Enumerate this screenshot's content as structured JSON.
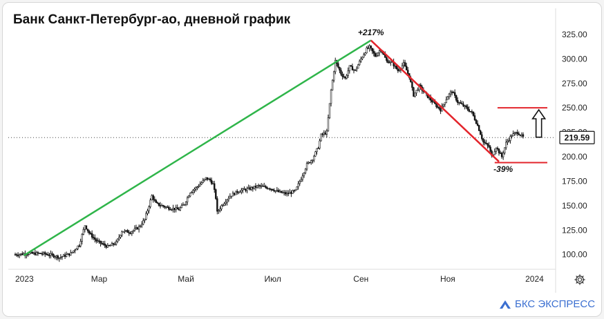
{
  "title": "Банк Санкт-Петербург-ао, дневной график",
  "brand": {
    "name": "БКС ЭКСПРЕСС",
    "color": "#3b6fd1"
  },
  "icons": {
    "settings": "gear-icon",
    "logo": "bks-logo-icon",
    "arrow": "up-arrow-icon"
  },
  "colors": {
    "candles": "#111111",
    "uptrend": "#2fb54a",
    "downtrend": "#e3242b",
    "levels": "#e3242b",
    "axis_text": "#222222"
  },
  "chart_data": {
    "type": "candlestick",
    "title": "Банк Санкт-Петербург-ао, дневной график",
    "y_ticks": [
      "100.00",
      "125.00",
      "150.00",
      "175.00",
      "200.00",
      "225.00",
      "250.00",
      "275.00",
      "300.00",
      "325.00"
    ],
    "ylim": [
      92,
      332
    ],
    "x_ticks": [
      "2023",
      "Мар",
      "Май",
      "Июл",
      "Сен",
      "Ноя",
      "2024"
    ],
    "x_tick_days": [
      1,
      60,
      121,
      182,
      244,
      305,
      366
    ],
    "xlim": [
      1,
      375
    ],
    "last_price": {
      "value": 219.59,
      "label": "219.59"
    },
    "close_series": [
      [
        1,
        100
      ],
      [
        10,
        101
      ],
      [
        20,
        101
      ],
      [
        28,
        99
      ],
      [
        32,
        97
      ],
      [
        40,
        101
      ],
      [
        46,
        110
      ],
      [
        50,
        130
      ],
      [
        53,
        122
      ],
      [
        58,
        114
      ],
      [
        66,
        108
      ],
      [
        72,
        112
      ],
      [
        76,
        124
      ],
      [
        82,
        123
      ],
      [
        88,
        128
      ],
      [
        92,
        136
      ],
      [
        95,
        150
      ],
      [
        97,
        160
      ],
      [
        100,
        152
      ],
      [
        108,
        148
      ],
      [
        116,
        146
      ],
      [
        120,
        152
      ],
      [
        124,
        164
      ],
      [
        128,
        168
      ],
      [
        131,
        172
      ],
      [
        135,
        178
      ],
      [
        138,
        176
      ],
      [
        140,
        172
      ],
      [
        142,
        158
      ],
      [
        138,
        150
      ],
      [
        143,
        143
      ],
      [
        146,
        150
      ],
      [
        152,
        160
      ],
      [
        158,
        165
      ],
      [
        165,
        167
      ],
      [
        172,
        170
      ],
      [
        180,
        168
      ],
      [
        186,
        164
      ],
      [
        192,
        162
      ],
      [
        198,
        165
      ],
      [
        202,
        178
      ],
      [
        206,
        192
      ],
      [
        210,
        198
      ],
      [
        214,
        210
      ],
      [
        216,
        222
      ],
      [
        220,
        225
      ],
      [
        223,
        268
      ],
      [
        226,
        298
      ],
      [
        230,
        285
      ],
      [
        233,
        280
      ],
      [
        236,
        292
      ],
      [
        240,
        288
      ],
      [
        244,
        300
      ],
      [
        248,
        310
      ],
      [
        250,
        312
      ],
      [
        254,
        303
      ],
      [
        258,
        310
      ],
      [
        262,
        298
      ],
      [
        266,
        296
      ],
      [
        270,
        288
      ],
      [
        274,
        295
      ],
      [
        278,
        282
      ],
      [
        281,
        263
      ],
      [
        285,
        272
      ],
      [
        290,
        263
      ],
      [
        295,
        255
      ],
      [
        300,
        248
      ],
      [
        305,
        262
      ],
      [
        308,
        267
      ],
      [
        312,
        256
      ],
      [
        318,
        250
      ],
      [
        322,
        245
      ],
      [
        326,
        232
      ],
      [
        330,
        215
      ],
      [
        334,
        210
      ],
      [
        336,
        200
      ],
      [
        339,
        210
      ],
      [
        343,
        200
      ],
      [
        346,
        214
      ],
      [
        350,
        222
      ],
      [
        354,
        225
      ],
      [
        358,
        220
      ]
    ],
    "annotations": [
      {
        "label": "+217%",
        "x": 251,
        "y": 320
      },
      {
        "label": "-39%",
        "x": 344,
        "y": 193
      }
    ],
    "trend_lines": [
      {
        "kind": "up",
        "from": [
          7,
          99
        ],
        "to": [
          251,
          319
        ]
      },
      {
        "kind": "down",
        "from": [
          251,
          319
        ],
        "to": [
          341,
          195
        ]
      }
    ],
    "levels": [
      {
        "value": 250,
        "x_from": 340,
        "x_to": 375
      },
      {
        "value": 194,
        "x_from": 338,
        "x_to": 375
      }
    ],
    "arrow": {
      "x": 369,
      "y_from": 220,
      "y_to": 248
    },
    "grid": false
  }
}
